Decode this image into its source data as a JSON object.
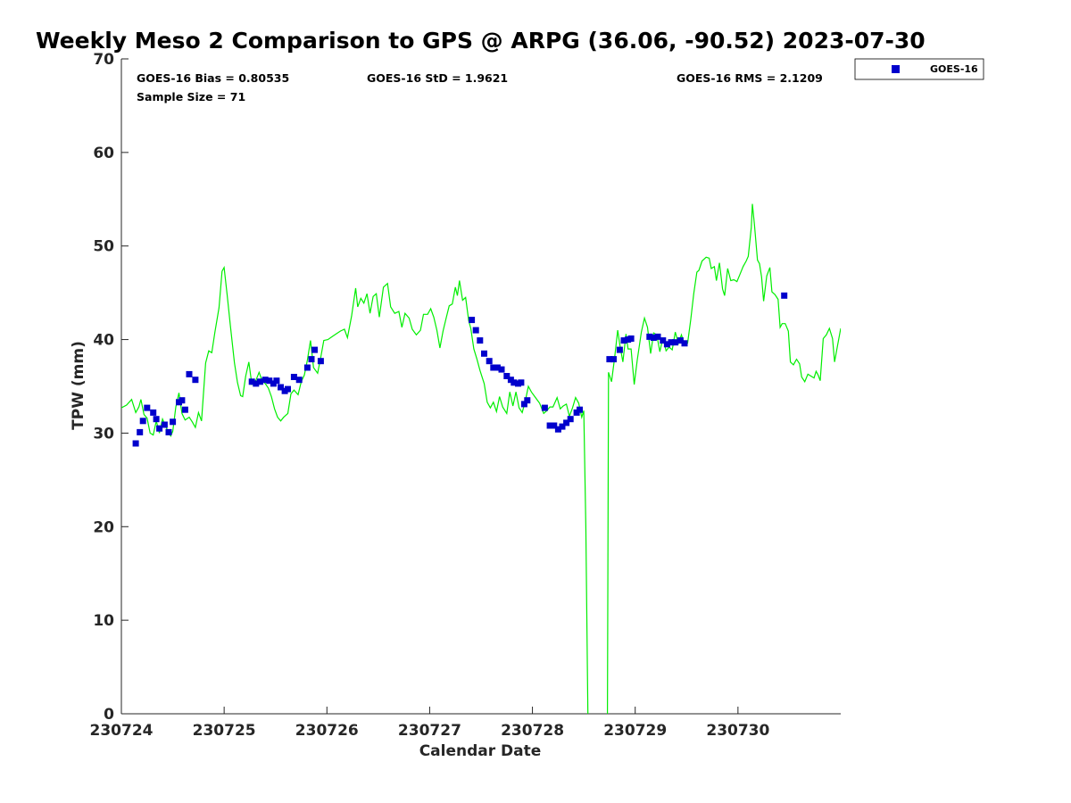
{
  "chart_data": {
    "type": "scatter",
    "title": "Weekly Meso 2 Comparison to GPS @ ARPG (36.06, -90.52) 2023-07-30",
    "xlabel": "Calendar Date",
    "ylabel": "TPW (mm)",
    "xlim": [
      0,
      7
    ],
    "ylim": [
      0,
      70
    ],
    "x_tick_values": [
      0,
      1,
      2,
      3,
      4,
      5,
      6
    ],
    "x_tick_labels": [
      "230724",
      "230725",
      "230726",
      "230727",
      "230728",
      "230729",
      "230730"
    ],
    "y_tick_values": [
      0,
      10,
      20,
      30,
      40,
      50,
      60,
      70
    ],
    "y_tick_labels": [
      "0",
      "10",
      "20",
      "30",
      "40",
      "50",
      "60",
      "70"
    ],
    "grid": false,
    "legend_position": "top-right outside",
    "stats": {
      "bias": "GOES-16 Bias = 0.80535",
      "std": "GOES-16 StD = 1.9621",
      "rms": "GOES-16 RMS = 2.1209",
      "sample": "Sample Size = 71"
    },
    "series": [
      {
        "name": "GOES-16",
        "marker": "square",
        "color": "#0000cc",
        "points": [
          [
            0.14,
            28.9
          ],
          [
            0.18,
            30.1
          ],
          [
            0.21,
            31.3
          ],
          [
            0.25,
            32.7
          ],
          [
            0.31,
            32.2
          ],
          [
            0.34,
            31.5
          ],
          [
            0.37,
            30.5
          ],
          [
            0.42,
            30.9
          ],
          [
            0.46,
            30.1
          ],
          [
            0.5,
            31.2
          ],
          [
            0.56,
            33.3
          ],
          [
            0.59,
            33.5
          ],
          [
            0.62,
            32.5
          ],
          [
            0.66,
            36.3
          ],
          [
            0.72,
            35.7
          ],
          [
            1.27,
            35.5
          ],
          [
            1.31,
            35.3
          ],
          [
            1.35,
            35.5
          ],
          [
            1.4,
            35.7
          ],
          [
            1.44,
            35.6
          ],
          [
            1.48,
            35.3
          ],
          [
            1.51,
            35.6
          ],
          [
            1.55,
            34.9
          ],
          [
            1.59,
            34.5
          ],
          [
            1.62,
            34.7
          ],
          [
            1.68,
            36.0
          ],
          [
            1.73,
            35.7
          ],
          [
            1.81,
            37.0
          ],
          [
            1.85,
            37.9
          ],
          [
            1.88,
            38.9
          ],
          [
            1.94,
            37.7
          ],
          [
            3.41,
            42.1
          ],
          [
            3.45,
            41.0
          ],
          [
            3.49,
            39.9
          ],
          [
            3.53,
            38.5
          ],
          [
            3.58,
            37.7
          ],
          [
            3.62,
            37.0
          ],
          [
            3.66,
            37.0
          ],
          [
            3.7,
            36.8
          ],
          [
            3.75,
            36.1
          ],
          [
            3.79,
            35.7
          ],
          [
            3.82,
            35.4
          ],
          [
            3.86,
            35.3
          ],
          [
            3.89,
            35.4
          ],
          [
            3.92,
            33.1
          ],
          [
            3.95,
            33.5
          ],
          [
            4.12,
            32.7
          ],
          [
            4.17,
            30.8
          ],
          [
            4.21,
            30.8
          ],
          [
            4.25,
            30.4
          ],
          [
            4.29,
            30.7
          ],
          [
            4.33,
            31.1
          ],
          [
            4.37,
            31.5
          ],
          [
            4.43,
            32.2
          ],
          [
            4.46,
            32.5
          ],
          [
            4.75,
            37.9
          ],
          [
            4.79,
            37.9
          ],
          [
            4.85,
            38.9
          ],
          [
            4.89,
            39.9
          ],
          [
            4.93,
            40.0
          ],
          [
            4.96,
            40.1
          ],
          [
            5.14,
            40.3
          ],
          [
            5.18,
            40.2
          ],
          [
            5.22,
            40.3
          ],
          [
            5.27,
            39.9
          ],
          [
            5.31,
            39.5
          ],
          [
            5.35,
            39.7
          ],
          [
            5.39,
            39.7
          ],
          [
            5.44,
            39.9
          ],
          [
            5.48,
            39.6
          ],
          [
            6.45,
            44.7
          ]
        ]
      },
      {
        "name": "GPS",
        "line": true,
        "color": "#00ee00",
        "points": [
          [
            0.0,
            32.7
          ],
          [
            0.05,
            33.0
          ],
          [
            0.1,
            33.6
          ],
          [
            0.14,
            32.2
          ],
          [
            0.17,
            32.8
          ],
          [
            0.19,
            33.6
          ],
          [
            0.22,
            32.0
          ],
          [
            0.25,
            31.6
          ],
          [
            0.28,
            30.0
          ],
          [
            0.31,
            29.8
          ],
          [
            0.34,
            31.3
          ],
          [
            0.37,
            30.0
          ],
          [
            0.4,
            31.5
          ],
          [
            0.44,
            30.5
          ],
          [
            0.48,
            29.7
          ],
          [
            0.5,
            30.2
          ],
          [
            0.53,
            32.8
          ],
          [
            0.56,
            34.3
          ],
          [
            0.59,
            32.1
          ],
          [
            0.62,
            31.4
          ],
          [
            0.66,
            31.7
          ],
          [
            0.69,
            31.2
          ],
          [
            0.72,
            30.6
          ],
          [
            0.75,
            32.2
          ],
          [
            0.78,
            31.3
          ],
          [
            0.82,
            37.5
          ],
          [
            0.85,
            38.8
          ],
          [
            0.88,
            38.6
          ],
          [
            0.91,
            40.8
          ],
          [
            0.95,
            43.4
          ],
          [
            0.98,
            47.3
          ],
          [
            1.0,
            47.7
          ],
          [
            1.03,
            44.7
          ],
          [
            1.06,
            41.5
          ],
          [
            1.1,
            37.5
          ],
          [
            1.13,
            35.4
          ],
          [
            1.16,
            34.0
          ],
          [
            1.18,
            33.9
          ],
          [
            1.21,
            36.1
          ],
          [
            1.24,
            37.6
          ],
          [
            1.27,
            35.2
          ],
          [
            1.3,
            35.4
          ],
          [
            1.34,
            36.5
          ],
          [
            1.37,
            35.6
          ],
          [
            1.4,
            35.3
          ],
          [
            1.43,
            34.8
          ],
          [
            1.46,
            33.9
          ],
          [
            1.49,
            32.6
          ],
          [
            1.52,
            31.7
          ],
          [
            1.55,
            31.3
          ],
          [
            1.58,
            31.7
          ],
          [
            1.62,
            32.1
          ],
          [
            1.65,
            34.2
          ],
          [
            1.68,
            34.6
          ],
          [
            1.72,
            34.1
          ],
          [
            1.75,
            35.5
          ],
          [
            1.78,
            36.2
          ],
          [
            1.81,
            37.8
          ],
          [
            1.84,
            39.9
          ],
          [
            1.87,
            37.0
          ],
          [
            1.91,
            36.4
          ],
          [
            1.94,
            38.1
          ],
          [
            1.97,
            39.9
          ],
          [
            2.01,
            40.0
          ],
          [
            2.05,
            40.3
          ],
          [
            2.09,
            40.6
          ],
          [
            2.13,
            40.9
          ],
          [
            2.17,
            41.1
          ],
          [
            2.2,
            40.2
          ],
          [
            2.24,
            42.5
          ],
          [
            2.28,
            45.5
          ],
          [
            2.3,
            43.5
          ],
          [
            2.33,
            44.4
          ],
          [
            2.36,
            43.9
          ],
          [
            2.39,
            44.9
          ],
          [
            2.42,
            42.8
          ],
          [
            2.45,
            44.6
          ],
          [
            2.48,
            44.9
          ],
          [
            2.51,
            42.4
          ],
          [
            2.55,
            45.6
          ],
          [
            2.59,
            46.0
          ],
          [
            2.62,
            43.5
          ],
          [
            2.66,
            42.8
          ],
          [
            2.7,
            43.0
          ],
          [
            2.73,
            41.3
          ],
          [
            2.76,
            42.8
          ],
          [
            2.8,
            42.3
          ],
          [
            2.83,
            41.1
          ],
          [
            2.87,
            40.5
          ],
          [
            2.91,
            41.0
          ],
          [
            2.94,
            42.7
          ],
          [
            2.98,
            42.7
          ],
          [
            3.01,
            43.3
          ],
          [
            3.04,
            42.4
          ],
          [
            3.07,
            41.0
          ],
          [
            3.1,
            39.1
          ],
          [
            3.13,
            40.9
          ],
          [
            3.16,
            42.3
          ],
          [
            3.19,
            43.6
          ],
          [
            3.22,
            43.8
          ],
          [
            3.25,
            45.6
          ],
          [
            3.27,
            44.7
          ],
          [
            3.29,
            46.3
          ],
          [
            3.32,
            44.2
          ],
          [
            3.35,
            44.5
          ],
          [
            3.38,
            42.0
          ],
          [
            3.4,
            41.2
          ],
          [
            3.43,
            39.0
          ],
          [
            3.46,
            37.9
          ],
          [
            3.49,
            36.7
          ],
          [
            3.53,
            35.3
          ],
          [
            3.56,
            33.3
          ],
          [
            3.59,
            32.7
          ],
          [
            3.62,
            33.3
          ],
          [
            3.65,
            32.3
          ],
          [
            3.68,
            33.9
          ],
          [
            3.71,
            32.8
          ],
          [
            3.75,
            32.1
          ],
          [
            3.78,
            34.4
          ],
          [
            3.81,
            32.9
          ],
          [
            3.84,
            34.4
          ],
          [
            3.87,
            32.7
          ],
          [
            3.9,
            32.2
          ],
          [
            3.93,
            33.4
          ],
          [
            3.96,
            35.0
          ],
          [
            3.99,
            34.4
          ],
          [
            4.03,
            33.8
          ],
          [
            4.07,
            33.2
          ],
          [
            4.11,
            32.1
          ],
          [
            4.14,
            32.4
          ],
          [
            4.17,
            32.8
          ],
          [
            4.2,
            32.8
          ],
          [
            4.24,
            33.8
          ],
          [
            4.27,
            32.6
          ],
          [
            4.3,
            32.9
          ],
          [
            4.33,
            33.1
          ],
          [
            4.36,
            31.8
          ],
          [
            4.39,
            32.7
          ],
          [
            4.42,
            33.8
          ],
          [
            4.45,
            33.2
          ],
          [
            4.48,
            31.7
          ],
          [
            4.5,
            32.4
          ],
          [
            4.52,
            20.0
          ],
          [
            4.54,
            0.0
          ]
        ],
        "points2": [
          [
            4.73,
            0.0
          ],
          [
            4.74,
            36.5
          ],
          [
            4.77,
            35.5
          ],
          [
            4.8,
            38.1
          ],
          [
            4.83,
            41.0
          ],
          [
            4.85,
            39.5
          ],
          [
            4.88,
            37.6
          ],
          [
            4.91,
            40.6
          ],
          [
            4.93,
            39.0
          ],
          [
            4.96,
            39.0
          ],
          [
            4.99,
            35.2
          ],
          [
            5.02,
            37.8
          ],
          [
            5.06,
            40.8
          ],
          [
            5.09,
            42.3
          ],
          [
            5.12,
            41.3
          ],
          [
            5.15,
            38.5
          ],
          [
            5.18,
            40.7
          ],
          [
            5.21,
            40.5
          ],
          [
            5.24,
            38.7
          ],
          [
            5.27,
            40.2
          ],
          [
            5.3,
            38.8
          ],
          [
            5.33,
            39.2
          ],
          [
            5.36,
            38.9
          ],
          [
            5.39,
            40.8
          ],
          [
            5.42,
            39.6
          ],
          [
            5.45,
            40.5
          ],
          [
            5.48,
            39.4
          ],
          [
            5.51,
            39.6
          ],
          [
            5.54,
            42.1
          ],
          [
            5.57,
            44.9
          ],
          [
            5.6,
            47.2
          ],
          [
            5.62,
            47.4
          ],
          [
            5.65,
            48.4
          ],
          [
            5.69,
            48.8
          ],
          [
            5.72,
            48.7
          ],
          [
            5.74,
            47.6
          ],
          [
            5.77,
            47.8
          ],
          [
            5.79,
            46.3
          ],
          [
            5.82,
            48.2
          ],
          [
            5.85,
            45.4
          ],
          [
            5.87,
            44.7
          ],
          [
            5.9,
            47.6
          ],
          [
            5.93,
            46.3
          ],
          [
            5.96,
            46.4
          ],
          [
            5.99,
            46.2
          ],
          [
            6.02,
            47.0
          ],
          [
            6.05,
            47.8
          ],
          [
            6.08,
            48.4
          ],
          [
            6.1,
            48.9
          ],
          [
            6.13,
            52.0
          ],
          [
            6.14,
            54.5
          ],
          [
            6.16,
            52.3
          ],
          [
            6.19,
            48.5
          ],
          [
            6.21,
            48.1
          ],
          [
            6.23,
            46.7
          ],
          [
            6.25,
            44.1
          ],
          [
            6.28,
            46.8
          ],
          [
            6.31,
            47.7
          ],
          [
            6.33,
            45.1
          ],
          [
            6.36,
            44.8
          ],
          [
            6.39,
            44.3
          ],
          [
            6.41,
            41.3
          ],
          [
            6.43,
            41.7
          ],
          [
            6.46,
            41.7
          ],
          [
            6.49,
            40.9
          ],
          [
            6.51,
            37.6
          ],
          [
            6.54,
            37.3
          ],
          [
            6.57,
            37.9
          ],
          [
            6.6,
            37.4
          ],
          [
            6.62,
            36.0
          ],
          [
            6.65,
            35.5
          ],
          [
            6.68,
            36.3
          ],
          [
            6.71,
            36.1
          ],
          [
            6.74,
            35.9
          ],
          [
            6.76,
            36.6
          ],
          [
            6.78,
            36.2
          ],
          [
            6.8,
            35.6
          ],
          [
            6.83,
            40.1
          ],
          [
            6.86,
            40.5
          ],
          [
            6.89,
            41.2
          ],
          [
            6.92,
            40.1
          ],
          [
            6.94,
            37.6
          ],
          [
            6.97,
            39.4
          ],
          [
            7.0,
            41.2
          ]
        ]
      }
    ]
  }
}
